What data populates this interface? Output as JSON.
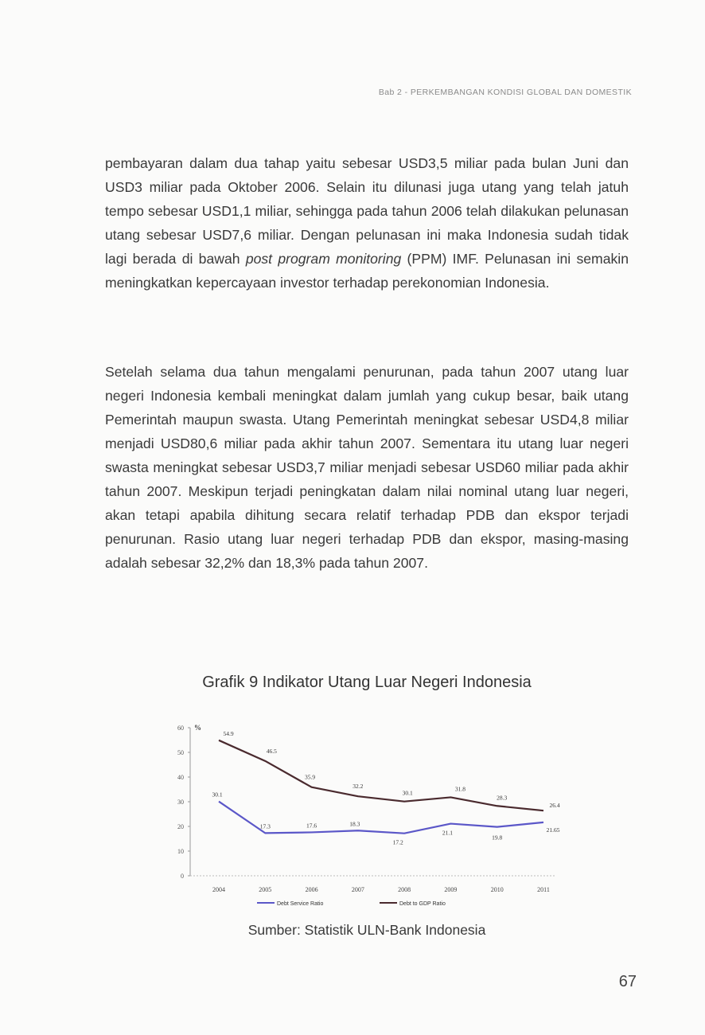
{
  "header": {
    "running_title": "Bab 2 - PERKEMBANGAN KONDISI GLOBAL DAN DOMESTIK"
  },
  "paragraphs": {
    "p1_before_italic": "pembayaran dalam dua tahap yaitu sebesar USD3,5 miliar pada bulan Juni dan USD3 miliar pada Oktober 2006. Selain itu dilunasi juga utang yang telah jatuh tempo sebesar USD1,1 miliar, sehingga pada tahun 2006 telah dilakukan pelunasan utang sebesar USD7,6 miliar. Dengan pelunasan ini maka Indonesia sudah tidak lagi berada di bawah ",
    "p1_italic": "post program monitoring",
    "p1_after_italic": " (PPM) IMF. Pelunasan ini semakin meningkatkan kepercayaan investor terhadap perekonomian Indonesia.",
    "p2": "Setelah selama dua tahun mengalami penurunan, pada tahun 2007 utang luar negeri Indonesia kembali meningkat dalam jumlah yang cukup besar, baik utang Pemerintah maupun swasta. Utang Pemerintah meningkat sebesar USD4,8 miliar menjadi USD80,6 miliar pada akhir tahun 2007. Sementara itu utang luar negeri swasta meningkat sebesar USD3,7 miliar menjadi sebesar USD60 miliar pada akhir tahun 2007. Meskipun terjadi peningkatan dalam nilai nominal utang luar negeri, akan tetapi apabila dihitung secara relatif terhadap PDB dan ekspor terjadi penurunan. Rasio utang luar negeri terhadap PDB dan ekspor, masing-masing adalah sebesar 32,2% dan 18,3% pada tahun 2007."
  },
  "figure": {
    "title": "Grafik 9 Indikator Utang Luar Negeri Indonesia",
    "source": "Sumber: Statistik ULN-Bank Indonesia"
  },
  "chart_data": {
    "type": "line",
    "title": "",
    "ylabel": "%",
    "xlabel": "",
    "categories": [
      "2004",
      "2005",
      "2006",
      "2007",
      "2008",
      "2009",
      "2010",
      "2011"
    ],
    "ylim": [
      0,
      60
    ],
    "yticks": [
      0,
      10,
      20,
      30,
      40,
      50,
      60
    ],
    "grid": false,
    "legend_position": "bottom",
    "series": [
      {
        "name": "Debt Service Ratio",
        "color": "#5b57c8",
        "values": [
          30.1,
          17.3,
          17.6,
          18.3,
          17.2,
          21.1,
          19.8,
          21.65
        ],
        "labels": [
          "30.1",
          "17.3",
          "17.6",
          "18.3",
          "17.2",
          "21.1",
          "19.8",
          "21.65"
        ]
      },
      {
        "name": "Debt to GDP Ratio",
        "color": "#4a2a2e",
        "values": [
          54.9,
          46.5,
          35.9,
          32.2,
          30.1,
          31.8,
          28.3,
          26.4
        ],
        "labels": [
          "54.9",
          "46.5",
          "35.9",
          "32.2",
          "30.1",
          "31.8",
          "28.3",
          "26.4"
        ]
      }
    ]
  },
  "footer": {
    "page_number": "67"
  }
}
